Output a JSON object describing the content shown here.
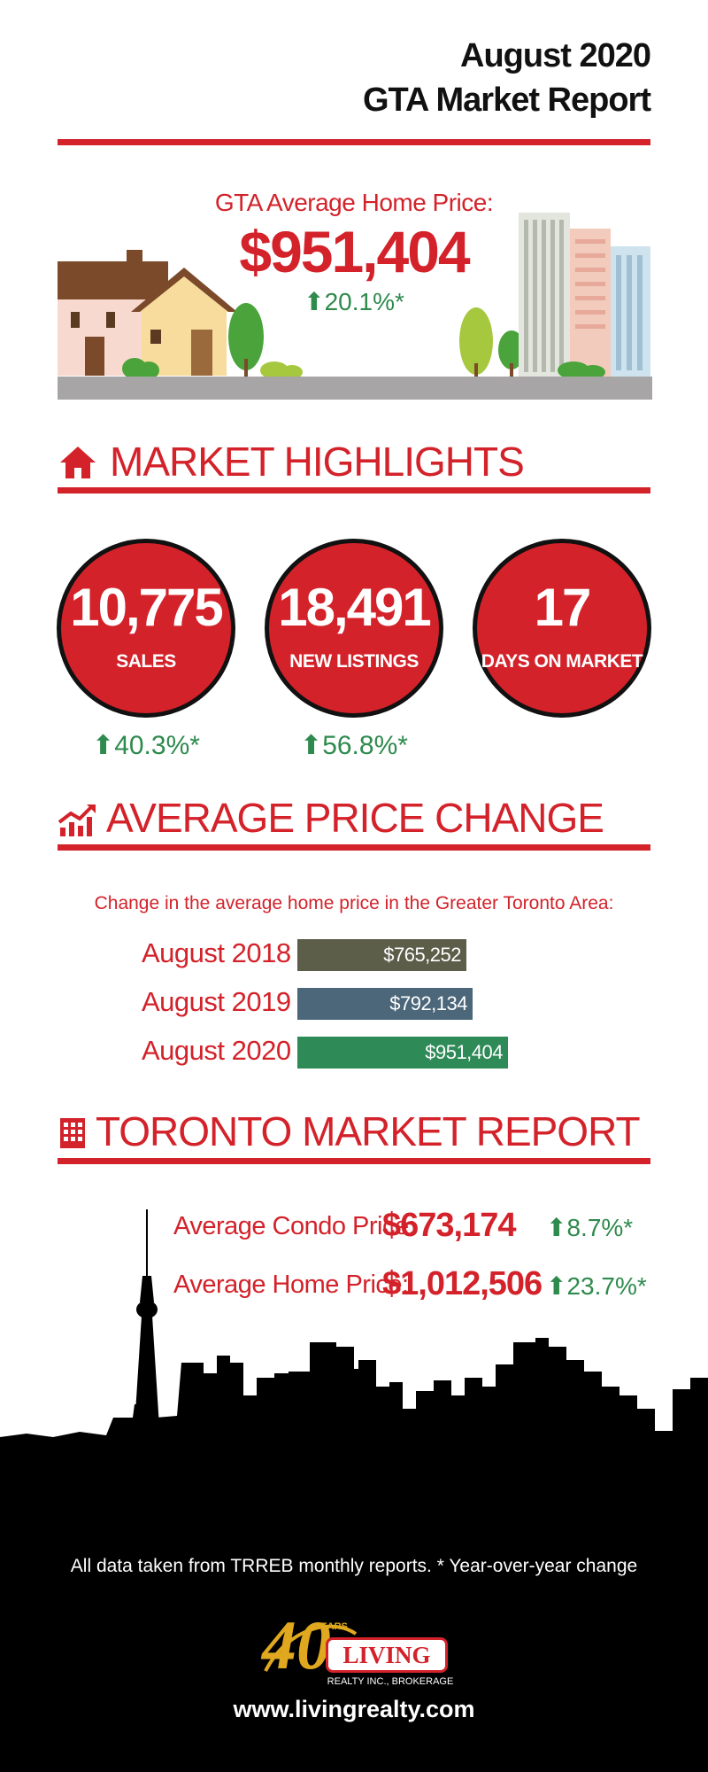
{
  "header": {
    "line1": "August 2020",
    "line2": "GTA Market Report"
  },
  "hero": {
    "label": "GTA Average Home Price:",
    "price": "$951,404",
    "change": "20.1%*"
  },
  "sections": {
    "highlights": "MARKET HIGHLIGHTS",
    "price_change": "AVERAGE PRICE CHANGE",
    "toronto": "TORONTO MARKET REPORT"
  },
  "highlights": [
    {
      "value": "10,775",
      "label": "SALES",
      "change": "40.3%*"
    },
    {
      "value": "18,491",
      "label": "NEW LISTINGS",
      "change": "56.8%*"
    },
    {
      "value": "17",
      "label": "DAYS ON MARKET",
      "change": ""
    }
  ],
  "chart_subtitle": "Change in the average home price in the Greater Toronto Area:",
  "chart_data": {
    "type": "bar",
    "orientation": "horizontal",
    "categories": [
      "August 2018",
      "August 2019",
      "August 2020"
    ],
    "values": [
      765252,
      792134,
      951404
    ],
    "value_labels": [
      "$765,252",
      "$792,134",
      "$951,404"
    ],
    "title": "Change in the average home price in the Greater Toronto Area:",
    "xlabel": "",
    "ylabel": "",
    "colors": [
      "#5c5e4a",
      "#4b6779",
      "#2e8a57"
    ],
    "grid": false
  },
  "toronto": {
    "condo_label": "Average Condo Price:",
    "condo_value": "$673,174",
    "condo_change": "8.7%*",
    "home_label": "Average Home Price:",
    "home_value": "$1,012,506",
    "home_change": "23.7%*"
  },
  "footer": {
    "note": "All data taken from TRREB monthly reports.  * Year-over-year change",
    "logo_number": "40",
    "logo_years": "YEARS",
    "logo_brand": "LIVING",
    "logo_sub": "REALTY INC., BROKERAGE",
    "website": "www.livingrealty.com"
  },
  "colors": {
    "accent_red": "#d3222a",
    "positive_green": "#2e8a4d",
    "footer_black": "#000000"
  },
  "icons": [
    "house-icon",
    "trend-chart-icon",
    "building-icon",
    "up-arrow-icon"
  ]
}
